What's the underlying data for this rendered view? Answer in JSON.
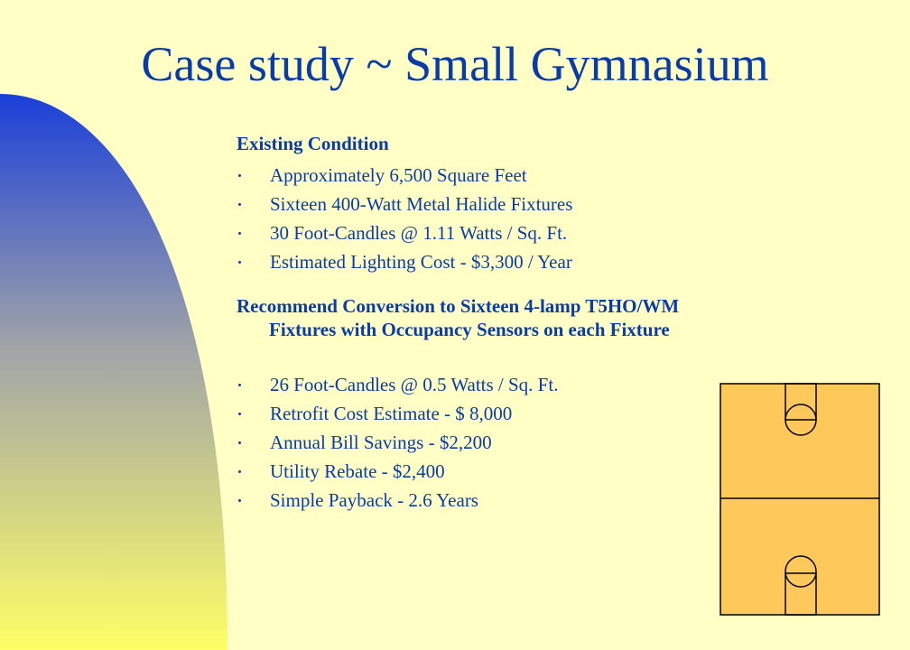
{
  "slide": {
    "title": "Case study ~ Small Gymnasium",
    "colors": {
      "background": "#ffffc6",
      "text": "#0a3ca8",
      "gradient_top": "#1a3fd8",
      "gradient_bottom": "#ffff66",
      "court_fill": "#ffc85a",
      "court_line": "#000000"
    },
    "existing": {
      "heading": "Existing Condition",
      "items": [
        "Approximately 6,500 Square Feet",
        "Sixteen 400-Watt Metal Halide Fixtures",
        "30 Foot-Candles @ 1.11 Watts / Sq. Ft.",
        "Estimated Lighting Cost - $3,300 / Year"
      ]
    },
    "recommend": {
      "heading": "Recommend Conversion to Sixteen 4-lamp T5HO/WM Fixtures with Occupancy Sensors on each Fixture",
      "items": [
        "26 Foot-Candles @ 0.5 Watts / Sq. Ft.",
        "Retrofit Cost Estimate - $ 8,000",
        "Annual Bill Savings - $2,200",
        "Utility Rebate - $2,400",
        "Simple Payback - 2.6 Years"
      ]
    },
    "diagram_icon": "basketball-court-diagram"
  }
}
